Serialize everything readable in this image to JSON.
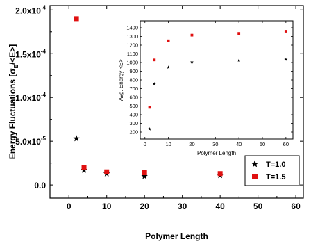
{
  "chart_data": [
    {
      "type": "scatter",
      "role": "main",
      "xlabel": "Polymer Length",
      "ylabel": "Energy Fluctuations [σE/<E>]",
      "xlim": [
        -5,
        62
      ],
      "ylim": [
        -1.5e-05,
        0.000205
      ],
      "xticks": [
        0,
        10,
        20,
        30,
        40,
        50,
        60
      ],
      "xtick_labels": [
        "0",
        "10",
        "20",
        "30",
        "40",
        "50",
        "60"
      ],
      "yticks": [
        0,
        5e-05,
        0.0001,
        0.00015,
        0.0002
      ],
      "ytick_labels": [
        "0.0",
        "5.0x10-5",
        "1.0x10-4",
        "1.5x10-4",
        "2.0x10-4"
      ],
      "ytick_parts": [
        {
          "mant": "0.0",
          "exp": ""
        },
        {
          "mant": "5.0x10",
          "exp": "-5"
        },
        {
          "mant": "1.0x10",
          "exp": "-4"
        },
        {
          "mant": "1.5x10",
          "exp": "-4"
        },
        {
          "mant": "2.0x10",
          "exp": "-4"
        }
      ],
      "legend": "bottom-right",
      "grid": false,
      "series": [
        {
          "name": "T=1.0",
          "marker": "star",
          "color": "#000000",
          "x": [
            2,
            4,
            10,
            20,
            40,
            60
          ],
          "y": [
            5.3e-05,
            1.7e-05,
            1.3e-05,
            1e-05,
            1.1e-05,
            1.1e-05
          ]
        },
        {
          "name": "T=1.5",
          "marker": "square",
          "color": "#e01010",
          "x": [
            2,
            4,
            10,
            20,
            40,
            60
          ],
          "y": [
            0.00019,
            2e-05,
            1.5e-05,
            1.4e-05,
            1.3e-05,
            1.3e-05
          ]
        }
      ]
    },
    {
      "type": "scatter",
      "role": "inset",
      "xlabel": "Polymer Length",
      "ylabel": "Avg. Energy <E>",
      "xlim": [
        -2,
        63
      ],
      "ylim": [
        120,
        1480
      ],
      "xticks": [
        0,
        10,
        20,
        30,
        40,
        50,
        60
      ],
      "xtick_labels": [
        "0",
        "10",
        "20",
        "30",
        "40",
        "50",
        "60"
      ],
      "yticks": [
        200,
        300,
        400,
        500,
        600,
        700,
        800,
        900,
        1000,
        1100,
        1200,
        1300,
        1400
      ],
      "ytick_labels": [
        "200",
        "300",
        "400",
        "500",
        "600",
        "700",
        "800",
        "900",
        "1000",
        "1100",
        "1200",
        "1300",
        "1400"
      ],
      "grid": false,
      "series": [
        {
          "marker": "star",
          "color": "#000000",
          "x": [
            2,
            4,
            10,
            20,
            40,
            60
          ],
          "y": [
            235,
            755,
            945,
            1005,
            1025,
            1035
          ]
        },
        {
          "marker": "square",
          "color": "#e01010",
          "x": [
            2,
            4,
            10,
            20,
            40,
            60
          ],
          "y": [
            485,
            1030,
            1250,
            1315,
            1335,
            1360
          ]
        }
      ]
    }
  ]
}
